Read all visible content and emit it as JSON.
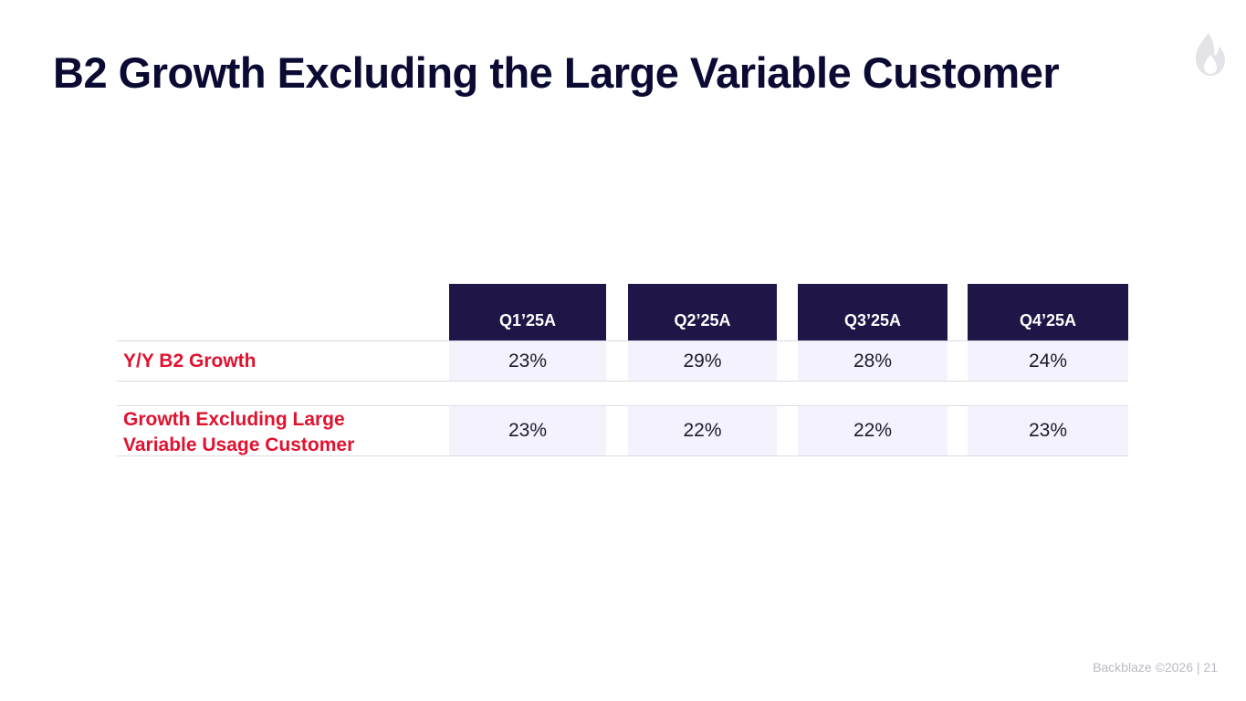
{
  "slide": {
    "title": "B2 Growth Excluding the Large Variable Customer"
  },
  "logo": {
    "icon": "flame-icon",
    "color": "#e3e3e8"
  },
  "table": {
    "columns": [
      "Q1’25A",
      "Q2’25A",
      "Q3’25A",
      "Q4’25A"
    ],
    "rows": [
      {
        "label": "Y/Y B2 Growth",
        "values": [
          "23%",
          "29%",
          "28%",
          "24%"
        ]
      },
      {
        "label_line1": "Growth Excluding  Large",
        "label_line2": "Variable Usage Customer",
        "values": [
          "23%",
          "22%",
          "22%",
          "23%"
        ]
      }
    ]
  },
  "footer": {
    "text": "Backblaze ©2026 |  21"
  },
  "colors": {
    "title": "#0a0a33",
    "header_bg": "#1f1547",
    "label": "#e0122f",
    "cell_bg": "#f4f3fd"
  }
}
